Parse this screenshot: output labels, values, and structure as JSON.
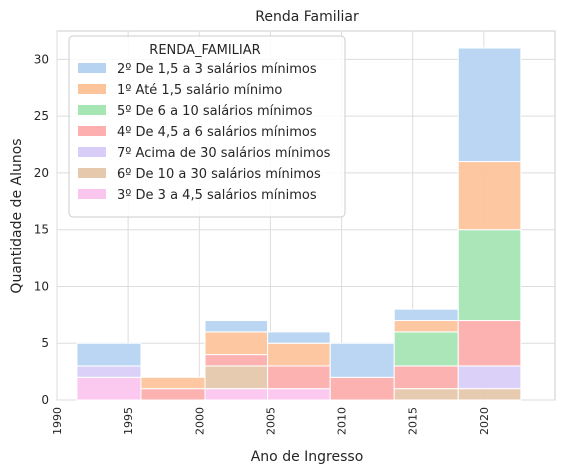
{
  "chart_data": {
    "type": "bar",
    "subtype": "stacked-histogram",
    "title": "Renda Familiar",
    "xlabel": "Ano de Ingresso",
    "ylabel": "Quantidade de Alunos",
    "xlim": [
      1990,
      2025
    ],
    "ylim": [
      0,
      32.5
    ],
    "x_ticks": [
      1990,
      1995,
      2000,
      2005,
      2010,
      2015,
      2020
    ],
    "y_ticks": [
      0,
      5,
      10,
      15,
      20,
      25,
      30
    ],
    "grid": true,
    "legend_title": "RENDA_FAMILIAR",
    "legend_position": "top-left",
    "bins": [
      {
        "start": 1991.4,
        "end": 1995.9
      },
      {
        "start": 1995.9,
        "end": 2000.4
      },
      {
        "start": 2000.4,
        "end": 2004.8
      },
      {
        "start": 2004.8,
        "end": 2009.2
      },
      {
        "start": 2009.2,
        "end": 2013.7
      },
      {
        "start": 2013.7,
        "end": 2018.2
      },
      {
        "start": 2018.2,
        "end": 2022.6
      }
    ],
    "series": [
      {
        "name": "2º De 1,5 a 3 salários mínimos",
        "color": "#b6d4f2",
        "values": [
          2,
          0,
          1,
          1,
          3,
          1,
          10
        ]
      },
      {
        "name": "1º Até 1,5 salário mínimo",
        "color": "#fdc49c",
        "values": [
          0,
          1,
          2,
          2,
          0,
          1,
          6
        ]
      },
      {
        "name": "5º De 6 a 10 salários mínimos",
        "color": "#a6e5b4",
        "values": [
          0,
          0,
          0,
          0,
          0,
          3,
          8
        ]
      },
      {
        "name": "4º De 4,5 a 6 salários mínimos",
        "color": "#fdaeae",
        "values": [
          0,
          1,
          1,
          2,
          2,
          2,
          4
        ]
      },
      {
        "name": "7º Acima de 30 salários mínimos",
        "color": "#d8cdf8",
        "values": [
          1,
          0,
          0,
          0,
          0,
          0,
          2
        ]
      },
      {
        "name": "6º De 10 a 30 salários mínimos",
        "color": "#e6c8ad",
        "values": [
          0,
          0,
          2,
          0,
          0,
          1,
          1
        ]
      },
      {
        "name": "3º De 3 a 4,5 salários mínimos",
        "color": "#fbc6ee",
        "values": [
          2,
          0,
          1,
          1,
          0,
          0,
          0
        ]
      }
    ],
    "stack_order_bottom_to_top": [
      6,
      5,
      4,
      3,
      2,
      1,
      0
    ]
  }
}
